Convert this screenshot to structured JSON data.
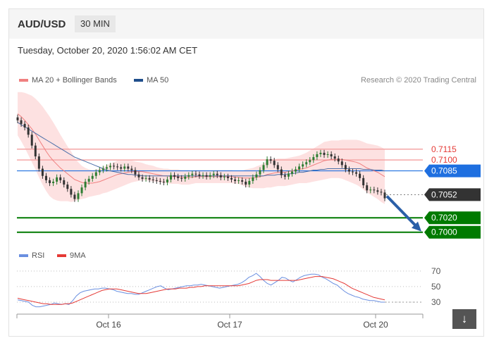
{
  "header": {
    "symbol": "AUD/USD",
    "timeframe": "30 MIN",
    "datetime": "Tuesday, October 20, 2020 1:56:02 AM CET"
  },
  "legend": {
    "ma20_label": "MA 20 + Bollinger Bands",
    "ma50_label": "MA 50",
    "credit": "Research © 2020 Trading Central"
  },
  "rsi_legend": {
    "rsi_label": "RSI",
    "ma9_label": "9MA"
  },
  "colors": {
    "ma20": "#f08080",
    "bollinger_fill": "#fddcdc",
    "ma50": "#1f4e8c",
    "candle_up": "#2e7d32",
    "candle_down": "#333333",
    "resistance": "#e53935",
    "pivot": "#1e6fe0",
    "support": "#007a00",
    "current": "#333333",
    "arrow": "#2a5fa8",
    "rsi": "#6a8fe0",
    "rsi_ma": "#e53935"
  },
  "download_icon": "download-arrow-icon",
  "chart_data": [
    {
      "type": "candlestick",
      "title": "AUD/USD",
      "x_ticks": [
        "Oct 16",
        "Oct 17",
        "Oct 20"
      ],
      "ylim": [
        0.699,
        0.7185
      ],
      "levels": [
        {
          "label": "0.7115",
          "value": 0.7115,
          "kind": "resistance"
        },
        {
          "label": "0.7100",
          "value": 0.71,
          "kind": "resistance"
        },
        {
          "label": "0.7085",
          "value": 0.7085,
          "kind": "pivot"
        },
        {
          "label": "0.7052",
          "value": 0.7052,
          "kind": "current"
        },
        {
          "label": "0.7020",
          "value": 0.702,
          "kind": "support"
        },
        {
          "label": "0.7000",
          "value": 0.7,
          "kind": "support"
        }
      ],
      "close": [
        0.7155,
        0.715,
        0.7145,
        0.7135,
        0.712,
        0.7105,
        0.7088,
        0.7078,
        0.7072,
        0.7068,
        0.707,
        0.7076,
        0.7072,
        0.7066,
        0.706,
        0.7052,
        0.7046,
        0.7054,
        0.7062,
        0.707,
        0.7074,
        0.7078,
        0.7083,
        0.7086,
        0.7088,
        0.709,
        0.7092,
        0.7091,
        0.709,
        0.7088,
        0.7091,
        0.7088,
        0.7086,
        0.708,
        0.7076,
        0.7074,
        0.7075,
        0.7073,
        0.7072,
        0.7071,
        0.707,
        0.7069,
        0.7073,
        0.7079,
        0.7077,
        0.7075,
        0.7074,
        0.7077,
        0.7079,
        0.7081,
        0.708,
        0.7078,
        0.7079,
        0.7077,
        0.7079,
        0.7081,
        0.7079,
        0.7076,
        0.7077,
        0.7075,
        0.7073,
        0.7071,
        0.7072,
        0.707,
        0.7066,
        0.7071,
        0.7076,
        0.708,
        0.7086,
        0.7093,
        0.7101,
        0.7099,
        0.7093,
        0.7087,
        0.7079,
        0.7077,
        0.7081,
        0.7084,
        0.7087,
        0.7091,
        0.7094,
        0.7097,
        0.71,
        0.7104,
        0.7108,
        0.711,
        0.7107,
        0.7108,
        0.7105,
        0.7102,
        0.7098,
        0.7093,
        0.7087,
        0.7084,
        0.7083,
        0.7081,
        0.7075,
        0.7065,
        0.7058,
        0.7059,
        0.7058,
        0.7056,
        0.7055,
        0.7047
      ],
      "ma20": [
        0.7164,
        0.716,
        0.7155,
        0.7149,
        0.7143,
        0.7136,
        0.7128,
        0.712,
        0.7112,
        0.7105,
        0.7099,
        0.7094,
        0.7089,
        0.7085,
        0.7081,
        0.7077,
        0.7073,
        0.7071,
        0.7069,
        0.7068,
        0.7068,
        0.7068,
        0.7069,
        0.707,
        0.7072,
        0.7074,
        0.7076,
        0.7078,
        0.708,
        0.7081,
        0.7082,
        0.7083,
        0.7084,
        0.7084,
        0.7084,
        0.7084,
        0.7083,
        0.7082,
        0.7081,
        0.708,
        0.7079,
        0.7078,
        0.7078,
        0.7077,
        0.7077,
        0.7077,
        0.7076,
        0.7076,
        0.7076,
        0.7076,
        0.7077,
        0.7077,
        0.7077,
        0.7077,
        0.7077,
        0.7077,
        0.7077,
        0.7077,
        0.7077,
        0.7077,
        0.7077,
        0.7076,
        0.7076,
        0.7075,
        0.7075,
        0.7075,
        0.7075,
        0.7076,
        0.7077,
        0.7078,
        0.708,
        0.7081,
        0.7082,
        0.7083,
        0.7083,
        0.7083,
        0.7084,
        0.7085,
        0.7086,
        0.7087,
        0.7088,
        0.7089,
        0.7091,
        0.7093,
        0.7095,
        0.7097,
        0.7099,
        0.71,
        0.7101,
        0.7101,
        0.7101,
        0.7101,
        0.71,
        0.7099,
        0.7098,
        0.7097,
        0.7095,
        0.7092,
        0.7089,
        0.7087,
        0.7085,
        0.7083,
        0.708,
        0.7077
      ],
      "bb_width": [
        0.003,
        0.0034,
        0.0038,
        0.0042,
        0.0046,
        0.0049,
        0.0052,
        0.0054,
        0.0055,
        0.0055,
        0.0053,
        0.005,
        0.0046,
        0.0042,
        0.0038,
        0.0035,
        0.003,
        0.0026,
        0.0023,
        0.0021,
        0.0019,
        0.0018,
        0.0018,
        0.0018,
        0.0018,
        0.0019,
        0.0019,
        0.0019,
        0.0019,
        0.0018,
        0.0017,
        0.0016,
        0.0015,
        0.0014,
        0.0013,
        0.0012,
        0.0011,
        0.0011,
        0.0011,
        0.001,
        0.001,
        0.001,
        0.001,
        0.001,
        0.001,
        0.001,
        0.001,
        0.001,
        0.001,
        0.0009,
        0.0009,
        0.0009,
        0.0009,
        0.0009,
        0.0009,
        0.0009,
        0.0009,
        0.0009,
        0.0009,
        0.0009,
        0.0009,
        0.0009,
        0.0009,
        0.001,
        0.0012,
        0.0013,
        0.0014,
        0.0015,
        0.0016,
        0.0017,
        0.0018,
        0.0019,
        0.0019,
        0.0019,
        0.0019,
        0.0019,
        0.0019,
        0.0019,
        0.0019,
        0.0019,
        0.002,
        0.0021,
        0.0022,
        0.0023,
        0.0024,
        0.0025,
        0.0026,
        0.0026,
        0.0026,
        0.0026,
        0.0026,
        0.0027,
        0.0028,
        0.0029,
        0.003,
        0.0031,
        0.0032,
        0.0033,
        0.0034,
        0.0035,
        0.0036,
        0.0037,
        0.0038,
        0.0038
      ],
      "ma50": [
        0.7152,
        0.7149,
        0.7146,
        0.7143,
        0.714,
        0.7137,
        0.7134,
        0.7131,
        0.7128,
        0.7125,
        0.7122,
        0.7119,
        0.7116,
        0.7113,
        0.711,
        0.7107,
        0.7104,
        0.7102,
        0.71,
        0.7098,
        0.7096,
        0.7094,
        0.7092,
        0.709,
        0.7088,
        0.7086,
        0.7085,
        0.7084,
        0.7083,
        0.7082,
        0.7081,
        0.708,
        0.708,
        0.7079,
        0.7079,
        0.7078,
        0.7078,
        0.7078,
        0.7078,
        0.7078,
        0.7078,
        0.7078,
        0.7078,
        0.7078,
        0.7078,
        0.7078,
        0.7078,
        0.7078,
        0.7078,
        0.7078,
        0.7078,
        0.7078,
        0.7078,
        0.7078,
        0.7078,
        0.7078,
        0.7078,
        0.7078,
        0.7078,
        0.7078,
        0.7078,
        0.7078,
        0.7078,
        0.7078,
        0.7078,
        0.7078,
        0.7078,
        0.7078,
        0.7078,
        0.7078,
        0.7079,
        0.7079,
        0.7079,
        0.708,
        0.708,
        0.708,
        0.7081,
        0.7081,
        0.7082,
        0.7083,
        0.7083,
        0.7084,
        0.7085,
        0.7086,
        0.7086,
        0.7087,
        0.7087,
        0.7088,
        0.7088,
        0.7088,
        0.7088,
        0.7088,
        0.7088,
        0.7088,
        0.7088,
        0.7088,
        0.7088,
        0.7087,
        0.7087,
        0.7087,
        0.7086,
        0.7086,
        0.7086,
        0.7085
      ]
    },
    {
      "type": "line",
      "title": "RSI",
      "y_ticks": [
        70,
        50,
        30
      ],
      "ylim": [
        20,
        78
      ],
      "series": [
        {
          "name": "RSI",
          "values": [
            33,
            32,
            31,
            30,
            26,
            24,
            24,
            25,
            26,
            27,
            29,
            28,
            27,
            28,
            27,
            32,
            38,
            42,
            44,
            45,
            46,
            47,
            47,
            48,
            48,
            47,
            46,
            44,
            43,
            42,
            41,
            41,
            40,
            40,
            42,
            44,
            46,
            48,
            50,
            51,
            48,
            46,
            47,
            48,
            49,
            50,
            51,
            51,
            52,
            52,
            53,
            52,
            51,
            50,
            49,
            48,
            49,
            50,
            51,
            52,
            53,
            55,
            58,
            62,
            64,
            67,
            63,
            58,
            54,
            52,
            55,
            58,
            62,
            61,
            58,
            56,
            59,
            62,
            64,
            65,
            66,
            66,
            65,
            62,
            60,
            57,
            54,
            52,
            48,
            44,
            41,
            39,
            37,
            36,
            34,
            33,
            32,
            32,
            31,
            30,
            30
          ]
        },
        {
          "name": "9MA",
          "values": [
            35,
            34,
            33,
            32,
            31,
            30,
            29,
            28,
            28,
            27,
            27,
            27,
            27,
            28,
            28,
            29,
            31,
            33,
            35,
            37,
            39,
            41,
            43,
            45,
            46,
            47,
            47,
            47,
            46,
            45,
            44,
            43,
            42,
            41,
            41,
            41,
            42,
            43,
            44,
            45,
            46,
            47,
            47,
            47,
            48,
            48,
            48,
            49,
            49,
            50,
            50,
            51,
            51,
            51,
            51,
            51,
            51,
            51,
            51,
            51,
            51,
            52,
            53,
            54,
            56,
            58,
            59,
            59,
            59,
            58,
            58,
            58,
            58,
            58,
            58,
            58,
            58,
            59,
            60,
            61,
            62,
            63,
            63,
            63,
            62,
            61,
            60,
            58,
            56,
            54,
            51,
            48,
            46,
            44,
            42,
            40,
            38,
            36,
            35,
            34,
            33
          ]
        }
      ]
    }
  ]
}
